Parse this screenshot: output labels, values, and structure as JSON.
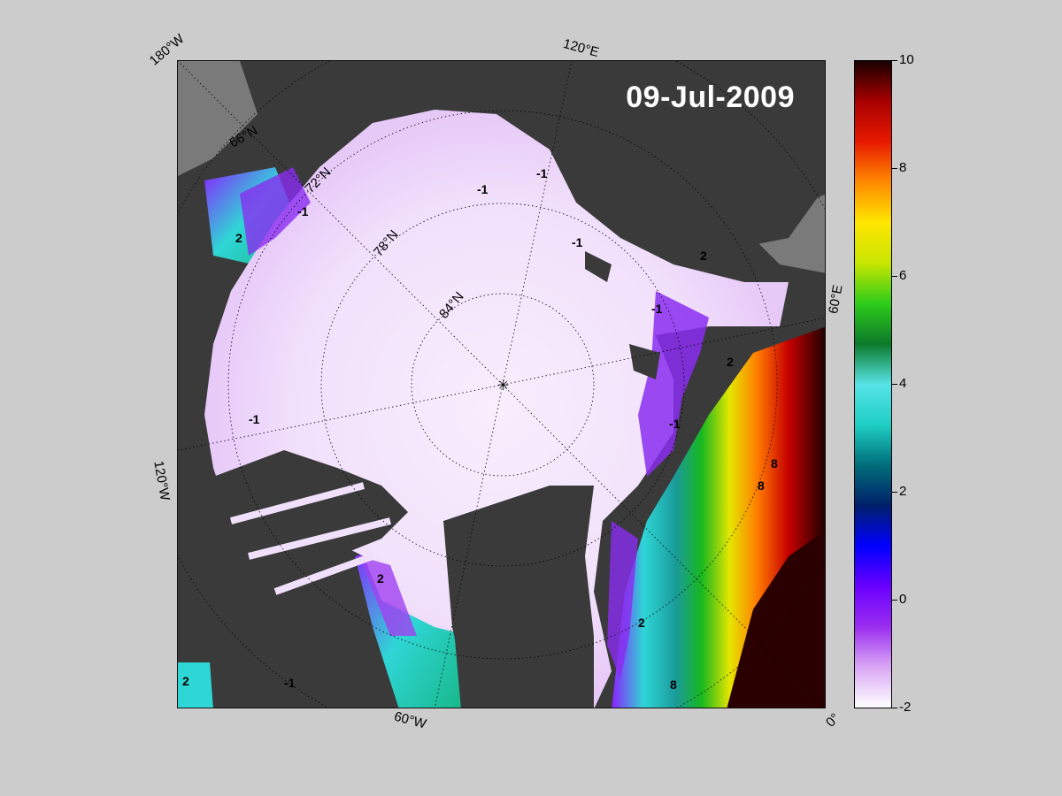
{
  "date_label": "09-Jul-2009",
  "map": {
    "longitude_labels": {
      "top": "120°E",
      "top_left": "180°W",
      "right": "60°E",
      "bottom_right": "0°",
      "bottom": "60°W",
      "left": "120°W"
    },
    "latitude_labels": [
      "66°N",
      "72°N",
      "78°N",
      "84°N"
    ],
    "contour_labels": [
      "-1",
      "-1",
      "-1",
      "-1",
      "-1",
      "-1",
      "-1",
      "-1",
      "2",
      "2",
      "2",
      "2",
      "2",
      "2",
      "8",
      "8",
      "8"
    ],
    "colors": {
      "ocean_ice": "#f3e6fb",
      "land": "#3a3a3a",
      "land_shelf": "#7a7a7a"
    }
  },
  "colorbar": {
    "min": -2,
    "max": 10,
    "tick_labels": [
      "10",
      "8",
      "6",
      "4",
      "2",
      "0",
      "-2"
    ],
    "tick_values": [
      10,
      8,
      6,
      4,
      2,
      0,
      -2
    ],
    "colors": [
      "#ffffff",
      "#d9a7f5",
      "#9a2df0",
      "#6a00ff",
      "#0000ff",
      "#00206a",
      "#006e7a",
      "#1fcfc4",
      "#57e3e6",
      "#0c7a2a",
      "#2ecc1a",
      "#c8e600",
      "#ffe600",
      "#ff8a00",
      "#e81a00",
      "#a80000",
      "#1a0000"
    ]
  }
}
